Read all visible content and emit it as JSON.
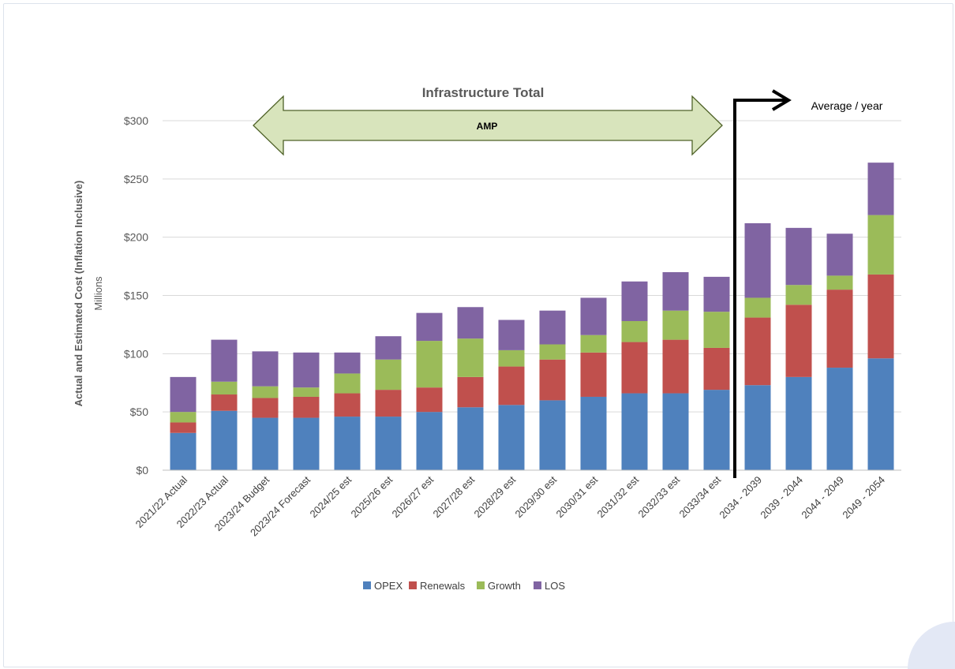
{
  "chart_data": {
    "type": "bar",
    "stacked": true,
    "title": "Infrastructure Total",
    "ylabel": "Actual and Estimated Cost (Inflation Inclusive)",
    "yunit": "Millions",
    "ylim": [
      0,
      300
    ],
    "yticks": [
      0,
      50,
      100,
      150,
      200,
      250,
      300
    ],
    "ytick_labels": [
      "$0",
      "$50",
      "$100",
      "$150",
      "$200",
      "$250",
      "$300"
    ],
    "grid": true,
    "legend_position": "bottom",
    "categories": [
      "2021/22 Actual",
      "2022/23 Actual",
      "2023/24 Budget",
      "2023/24 Forecast",
      "2024/25 est",
      "2025/26 est",
      "2026/27 est",
      "2027/28 est",
      "2028/29 est",
      "2029/30 est",
      "2030/31 est",
      "2031/32 est",
      "2032/33 est",
      "2033/34 est",
      "2034 - 2039",
      "2039 - 2044",
      "2044 - 2049",
      "2049 - 2054"
    ],
    "series": [
      {
        "name": "OPEX",
        "color": "#4f81bd",
        "values": [
          32,
          51,
          45,
          45,
          46,
          46,
          50,
          54,
          56,
          60,
          63,
          66,
          66,
          69,
          73,
          80,
          88,
          96
        ]
      },
      {
        "name": "Renewals",
        "color": "#c0504d",
        "values": [
          9,
          14,
          17,
          18,
          20,
          23,
          21,
          26,
          33,
          35,
          38,
          44,
          46,
          36,
          58,
          62,
          67,
          72
        ]
      },
      {
        "name": "Growth",
        "color": "#9bbb59",
        "values": [
          9,
          11,
          10,
          8,
          17,
          26,
          40,
          33,
          14,
          13,
          15,
          18,
          25,
          31,
          17,
          17,
          12,
          51
        ]
      },
      {
        "name": "LOS",
        "color": "#8064a2",
        "values": [
          30,
          36,
          30,
          30,
          18,
          20,
          24,
          27,
          26,
          29,
          32,
          34,
          33,
          30,
          64,
          49,
          36,
          45
        ]
      }
    ],
    "annotations": {
      "band_label": "AMP",
      "average_label": "Average / year"
    }
  }
}
